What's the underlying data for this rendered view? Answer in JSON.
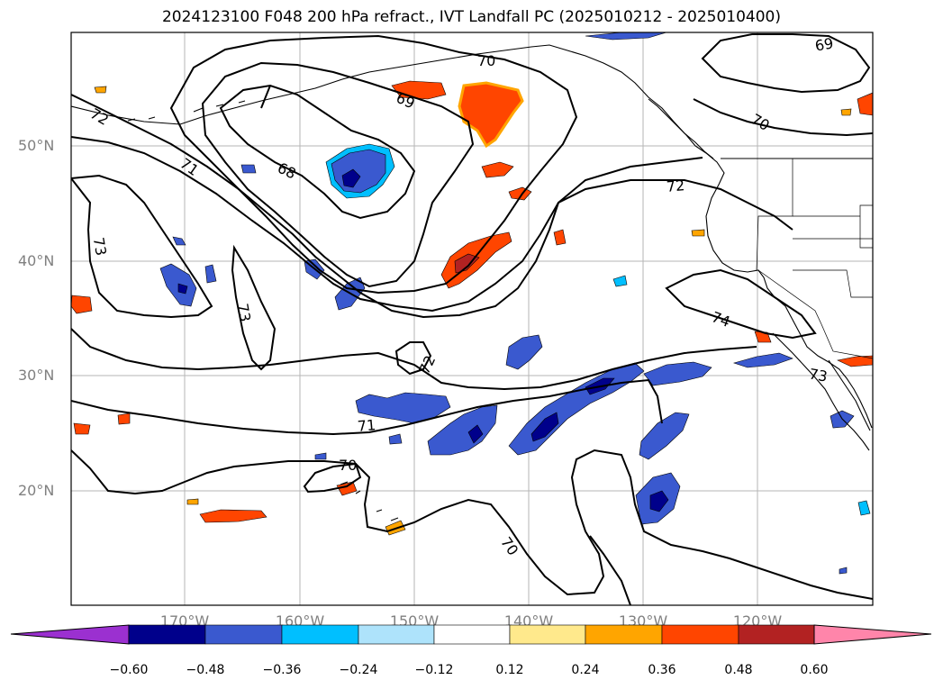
{
  "title": "2024123100 F048 200 hPa refract., IVT Landfall PC (2025010212 - 2025010400)",
  "map": {
    "lat_labels": [
      "50°N",
      "40°N",
      "30°N",
      "20°N"
    ],
    "lon_labels": [
      "170°W",
      "160°W",
      "150°W",
      "140°W",
      "130°W",
      "120°W"
    ],
    "contour_labels": [
      "70",
      "69",
      "72",
      "71",
      "68",
      "73",
      "73",
      "72",
      "74",
      "73",
      "71",
      "70",
      "70",
      "69",
      "70",
      "72"
    ]
  },
  "colorbar": {
    "tick_labels": [
      "−0.60",
      "−0.48",
      "−0.36",
      "−0.24",
      "−0.12",
      "0.12",
      "0.24",
      "0.36",
      "0.48",
      "0.60"
    ],
    "colors": [
      "#9b30d0",
      "#00008b",
      "#3a59cf",
      "#00bfff",
      "#aee3fb",
      "#ffffff",
      "#ffe98c",
      "#ffa500",
      "#ff4500",
      "#b22222",
      "#ff85aa"
    ]
  }
}
